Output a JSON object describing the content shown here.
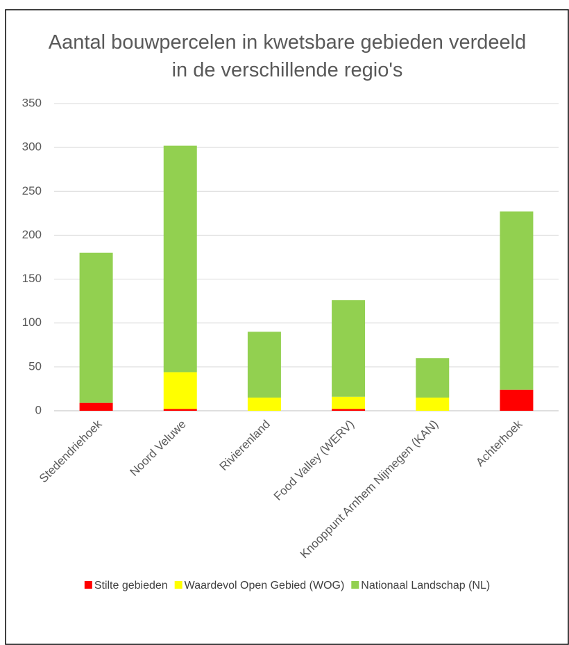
{
  "chart_data": {
    "type": "stacked-bar",
    "title": "Aantal bouwpercelen in kwetsbare gebieden verdeeld in de verschillende regio's",
    "categories": [
      "Stedendriehoek",
      "Noord Veluwe",
      "Rivierenland",
      "Food Valley (WERV)",
      "Knooppunt Arnhem Nijmegen (KAN)",
      "Achterhoek"
    ],
    "series": [
      {
        "name": "Stilte gebieden",
        "color": "#ff0000",
        "values": [
          9,
          2,
          0,
          2,
          0,
          24
        ]
      },
      {
        "name": "Waardevol Open Gebied (WOG)",
        "color": "#ffff00",
        "values": [
          0,
          42,
          15,
          14,
          15,
          0
        ]
      },
      {
        "name": "Nationaal Landschap (NL)",
        "color": "#92d050",
        "values": [
          171,
          258,
          75,
          110,
          45,
          203
        ]
      }
    ],
    "ylim": [
      0,
      350
    ],
    "yticks": [
      0,
      50,
      100,
      150,
      200,
      250,
      300,
      350
    ],
    "grid": true,
    "legend": "bottom"
  }
}
